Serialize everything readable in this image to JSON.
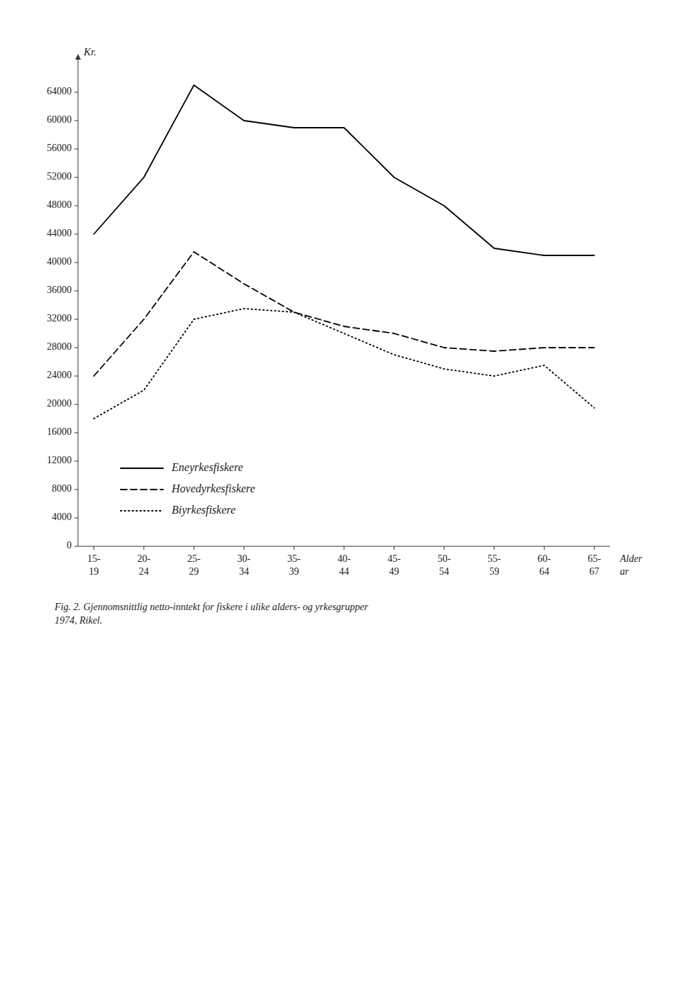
{
  "chart_data": {
    "type": "line",
    "categories": [
      "15-\n19",
      "20-\n24",
      "25-\n29",
      "30-\n34",
      "35-\n39",
      "40-\n44",
      "45-\n49",
      "50-\n54",
      "55-\n59",
      "60-\n64",
      "65-\n67"
    ],
    "series": [
      {
        "name": "Eneyrkesfiskere",
        "color": "#000000",
        "line_style": "solid",
        "values": [
          44000,
          52000,
          65000,
          60000,
          59000,
          59000,
          52000,
          48000,
          42000,
          41000,
          41000
        ]
      },
      {
        "name": "Hovedyrkesfiskere",
        "color": "#000000",
        "line_style": "dashed",
        "values": [
          24000,
          32000,
          41500,
          37000,
          33000,
          31000,
          30000,
          28000,
          27500,
          28000,
          28000
        ]
      },
      {
        "name": "Biyrkesfiskere",
        "color": "#000000",
        "line_style": "dotted",
        "values": [
          18000,
          22000,
          32000,
          33500,
          33000,
          30000,
          27000,
          25000,
          24000,
          25500,
          19500
        ]
      }
    ],
    "ylabel": "Kr.",
    "xlabel": "Alder\nar",
    "caption": "Fig. 2. Gjennomsnittlig netto-inntekt for fiskere i ulike alders- og yrkesgrupper\n1974, Rikel.",
    "ylim": [
      0,
      68000
    ],
    "yticks": [
      0,
      4000,
      8000,
      12000,
      16000,
      20000,
      24000,
      28000,
      32000,
      36000,
      40000,
      44000,
      48000,
      52000,
      56000,
      60000,
      64000
    ],
    "grid": false,
    "legend": "lower left",
    "background_color": "#ffffff"
  }
}
